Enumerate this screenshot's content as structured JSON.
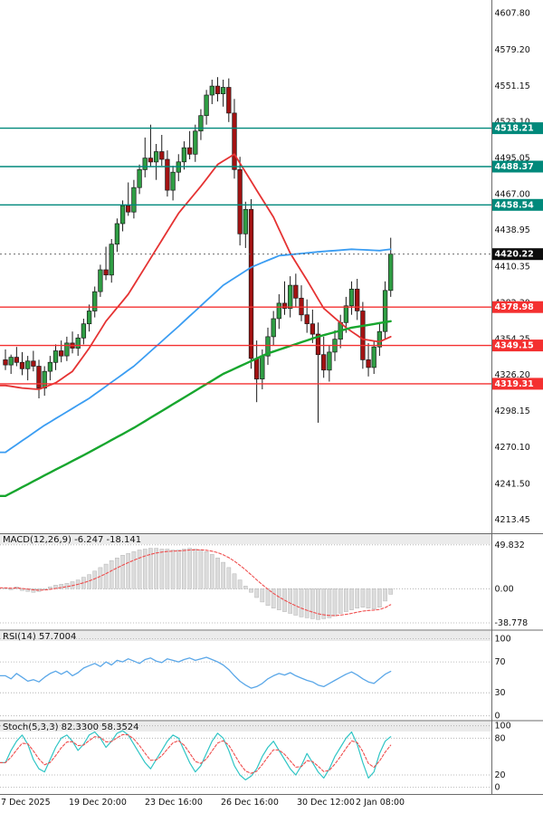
{
  "chart_data": {
    "type": "candlestick",
    "price_range": [
      4203,
      4618
    ],
    "price_axis": [
      4607.8,
      4579.2,
      4551.15,
      4523.1,
      4495.05,
      4467.0,
      4438.95,
      4410.35,
      4382.3,
      4354.25,
      4326.2,
      4298.15,
      4270.1,
      4241.5,
      4213.45
    ],
    "x_labels": [
      "7 Dec 2025",
      "19 Dec 20:00",
      "23 Dec 16:00",
      "26 Dec 16:00",
      "30 Dec 12:00",
      "2 Jan 08:00"
    ],
    "current_price": {
      "value": 4420.22,
      "label": "4420.22"
    },
    "levels": [
      {
        "value": 4518.21,
        "label": "4518.21",
        "kind": "resistance"
      },
      {
        "value": 4488.37,
        "label": "4488.37",
        "kind": "resistance"
      },
      {
        "value": 4458.54,
        "label": "4458.54",
        "kind": "resistance"
      },
      {
        "value": 4378.98,
        "label": "4378.98",
        "kind": "support"
      },
      {
        "value": 4349.15,
        "label": "4349.15",
        "kind": "support"
      },
      {
        "value": 4319.31,
        "label": "4319.31",
        "kind": "support"
      }
    ],
    "candles": [
      [
        4338,
        4346,
        4330,
        4334
      ],
      [
        4334,
        4342,
        4327,
        4340
      ],
      [
        4340,
        4348,
        4333,
        4336
      ],
      [
        4336,
        4344,
        4326,
        4331
      ],
      [
        4331,
        4341,
        4322,
        4337
      ],
      [
        4337,
        4345,
        4329,
        4333
      ],
      [
        4333,
        4338,
        4308,
        4316
      ],
      [
        4316,
        4333,
        4310,
        4329
      ],
      [
        4329,
        4341,
        4322,
        4336
      ],
      [
        4336,
        4350,
        4330,
        4345
      ],
      [
        4345,
        4353,
        4336,
        4341
      ],
      [
        4341,
        4356,
        4337,
        4351
      ],
      [
        4351,
        4360,
        4343,
        4347
      ],
      [
        4347,
        4358,
        4341,
        4355
      ],
      [
        4355,
        4370,
        4350,
        4366
      ],
      [
        4366,
        4381,
        4360,
        4376
      ],
      [
        4376,
        4395,
        4371,
        4391
      ],
      [
        4391,
        4412,
        4387,
        4408
      ],
      [
        4408,
        4426,
        4400,
        4404
      ],
      [
        4404,
        4432,
        4398,
        4428
      ],
      [
        4428,
        4448,
        4422,
        4444
      ],
      [
        4444,
        4462,
        4438,
        4458
      ],
      [
        4458,
        4476,
        4450,
        4453
      ],
      [
        4453,
        4478,
        4448,
        4472
      ],
      [
        4472,
        4490,
        4467,
        4486
      ],
      [
        4486,
        4511,
        4480,
        4495
      ],
      [
        4495,
        4521,
        4488,
        4492
      ],
      [
        4492,
        4506,
        4478,
        4500
      ],
      [
        4500,
        4513,
        4489,
        4494
      ],
      [
        4494,
        4501,
        4465,
        4470
      ],
      [
        4470,
        4489,
        4462,
        4484
      ],
      [
        4484,
        4498,
        4477,
        4492
      ],
      [
        4492,
        4508,
        4486,
        4503
      ],
      [
        4503,
        4516,
        4494,
        4498
      ],
      [
        4498,
        4521,
        4492,
        4516
      ],
      [
        4516,
        4533,
        4509,
        4528
      ],
      [
        4528,
        4548,
        4521,
        4544
      ],
      [
        4544,
        4556,
        4537,
        4551
      ],
      [
        4551,
        4558,
        4539,
        4545
      ],
      [
        4545,
        4556,
        4535,
        4550
      ],
      [
        4550,
        4557,
        4523,
        4530
      ],
      [
        4530,
        4541,
        4479,
        4486
      ],
      [
        4486,
        4496,
        4427,
        4436
      ],
      [
        4436,
        4461,
        4425,
        4455
      ],
      [
        4455,
        4463,
        4331,
        4339
      ],
      [
        4339,
        4353,
        4305,
        4323
      ],
      [
        4323,
        4346,
        4315,
        4341
      ],
      [
        4341,
        4363,
        4334,
        4356
      ],
      [
        4356,
        4376,
        4349,
        4370
      ],
      [
        4370,
        4389,
        4362,
        4382
      ],
      [
        4382,
        4399,
        4373,
        4378
      ],
      [
        4378,
        4403,
        4371,
        4396
      ],
      [
        4396,
        4405,
        4379,
        4386
      ],
      [
        4386,
        4396,
        4368,
        4373
      ],
      [
        4373,
        4385,
        4359,
        4366
      ],
      [
        4366,
        4377,
        4351,
        4358
      ],
      [
        4358,
        4367,
        4289,
        4342
      ],
      [
        4342,
        4356,
        4324,
        4330
      ],
      [
        4330,
        4349,
        4321,
        4344
      ],
      [
        4344,
        4361,
        4337,
        4354
      ],
      [
        4354,
        4373,
        4347,
        4367
      ],
      [
        4367,
        4387,
        4359,
        4380
      ],
      [
        4380,
        4399,
        4373,
        4393
      ],
      [
        4393,
        4401,
        4369,
        4376
      ],
      [
        4376,
        4383,
        4331,
        4338
      ],
      [
        4338,
        4351,
        4325,
        4332
      ],
      [
        4332,
        4353,
        4327,
        4348
      ],
      [
        4348,
        4367,
        4341,
        4360
      ],
      [
        4360,
        4399,
        4354,
        4392
      ],
      [
        4392,
        4433,
        4387,
        4420.22
      ]
    ],
    "moving_averages": [
      {
        "name": "ma-fast-red",
        "color_key": "ma_fast_red",
        "width": 1.8,
        "anchors": [
          [
            0,
            4318
          ],
          [
            3,
            4316
          ],
          [
            6,
            4315
          ],
          [
            9,
            4320
          ],
          [
            12,
            4329
          ],
          [
            15,
            4347
          ],
          [
            18,
            4368
          ],
          [
            22,
            4389
          ],
          [
            25,
            4410
          ],
          [
            28,
            4431
          ],
          [
            31,
            4452
          ],
          [
            35,
            4473
          ],
          [
            38,
            4490
          ],
          [
            41,
            4498
          ],
          [
            44,
            4477
          ],
          [
            48,
            4449
          ],
          [
            51,
            4421
          ],
          [
            54,
            4400
          ],
          [
            57,
            4378
          ],
          [
            61,
            4363
          ],
          [
            64,
            4354
          ],
          [
            67,
            4352
          ],
          [
            69,
            4356
          ]
        ]
      },
      {
        "name": "ma-mid-blue",
        "color_key": "ma_mid_blue",
        "width": 1.8,
        "anchors": [
          [
            0,
            4266
          ],
          [
            7,
            4287
          ],
          [
            15,
            4308
          ],
          [
            23,
            4333
          ],
          [
            31,
            4364
          ],
          [
            39,
            4396
          ],
          [
            44,
            4410
          ],
          [
            49,
            4419
          ],
          [
            56,
            4422
          ],
          [
            62,
            4424
          ],
          [
            67,
            4423
          ],
          [
            69,
            4424
          ]
        ]
      },
      {
        "name": "ma-slow-green",
        "color_key": "ma_slow_green",
        "width": 2.4,
        "anchors": [
          [
            0,
            4232
          ],
          [
            7,
            4248
          ],
          [
            15,
            4266
          ],
          [
            23,
            4285
          ],
          [
            31,
            4306
          ],
          [
            39,
            4327
          ],
          [
            47,
            4343
          ],
          [
            56,
            4356
          ],
          [
            62,
            4363
          ],
          [
            69,
            4368
          ]
        ]
      }
    ],
    "indicators": {
      "macd": {
        "label": "MACD(12,26,9) -6.247 -18.141",
        "range": [
          -46,
          62
        ],
        "axis": [
          {
            "v": 49.832,
            "label": "49.832"
          },
          {
            "v": 0,
            "label": "0.00"
          },
          {
            "v": -38.778,
            "label": "-38.778"
          }
        ],
        "values": [
          1,
          -1,
          2,
          -2,
          -3,
          -4,
          -3,
          -1,
          2,
          4,
          5,
          6,
          8,
          10,
          13,
          16,
          20,
          24,
          28,
          32,
          35,
          38,
          40,
          42,
          44,
          45,
          46,
          46,
          45,
          45,
          44,
          44,
          45,
          46,
          45,
          44,
          42,
          39,
          35,
          30,
          24,
          17,
          10,
          3,
          -4,
          -10,
          -15,
          -19,
          -22,
          -24,
          -26,
          -28,
          -30,
          -32,
          -33,
          -34,
          -35,
          -34,
          -33,
          -31,
          -28,
          -26,
          -24,
          -22,
          -21,
          -22,
          -23,
          -21,
          -14,
          -6.247
        ]
      },
      "rsi": {
        "label": "RSI(14) 57.7004",
        "range": [
          -5,
          110
        ],
        "axis": [
          {
            "v": 100,
            "label": "100"
          },
          {
            "v": 70,
            "label": "70"
          },
          {
            "v": 30,
            "label": "30"
          },
          {
            "v": 0,
            "label": "0"
          }
        ],
        "values": [
          52,
          48,
          55,
          50,
          45,
          47,
          44,
          50,
          55,
          58,
          54,
          58,
          52,
          56,
          62,
          65,
          68,
          64,
          70,
          66,
          72,
          70,
          74,
          71,
          68,
          73,
          75,
          71,
          69,
          74,
          72,
          70,
          73,
          75,
          72,
          74,
          76,
          73,
          70,
          66,
          60,
          52,
          45,
          40,
          36,
          38,
          42,
          48,
          52,
          55,
          53,
          56,
          52,
          49,
          46,
          44,
          40,
          38,
          42,
          46,
          50,
          54,
          57,
          53,
          48,
          44,
          42,
          48,
          54,
          57.7
        ]
      },
      "stoch": {
        "label": "Stoch(5,3,3) 82.3300 58.3524",
        "range": [
          -11,
          107
        ],
        "axis": [
          {
            "v": 100,
            "label": "100"
          },
          {
            "v": 80,
            "label": "80"
          },
          {
            "v": 20,
            "label": "20"
          },
          {
            "v": 0,
            "label": "0"
          }
        ],
        "k": [
          40,
          60,
          75,
          85,
          70,
          45,
          30,
          25,
          45,
          65,
          80,
          85,
          75,
          60,
          70,
          85,
          90,
          80,
          65,
          75,
          88,
          92,
          85,
          70,
          55,
          40,
          30,
          45,
          60,
          75,
          85,
          80,
          60,
          40,
          25,
          35,
          55,
          75,
          88,
          80,
          60,
          35,
          20,
          12,
          18,
          30,
          50,
          65,
          75,
          60,
          45,
          30,
          20,
          35,
          55,
          40,
          25,
          15,
          30,
          50,
          65,
          80,
          90,
          70,
          40,
          15,
          25,
          55,
          75,
          82.33
        ]
      }
    },
    "colors": {
      "background": "#ffffff",
      "text": "#111111",
      "bull": "#2f9e44",
      "bear": "#a31212",
      "candle_border": "#1a1a1a",
      "wick": "#1a1a1a",
      "ma_fast_red": "#e53333",
      "ma_mid_blue": "#3b9df2",
      "ma_slow_green": "#17a62e",
      "resistance": "#00897b",
      "support": "#f43030",
      "current_price_bg": "#0d0d0d",
      "current_price_text": "#ffffff",
      "macd_hist_fill": "#dcdcdc",
      "macd_hist_border": "#b5b5b5",
      "macd_signal": "#ef4d4d",
      "rsi_line": "#5aa7e8",
      "stoch_k": "#2fc5c5",
      "stoch_d": "#ef4d4d",
      "separator": "#6b6b6b",
      "grid_dotted": "#a8a8a8",
      "label_strip": "#ebebeb"
    }
  }
}
